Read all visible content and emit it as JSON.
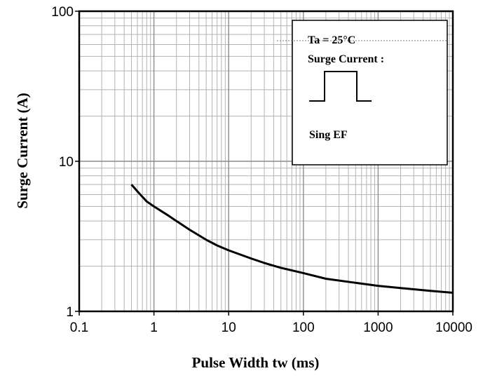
{
  "chart_data": {
    "type": "line",
    "xscale": "log",
    "yscale": "log",
    "xlim": [
      0.1,
      10000
    ],
    "ylim": [
      1,
      100
    ],
    "xlabel": "Pulse Width tw (ms)",
    "ylabel": "Surge Current (A)",
    "x_ticks": [
      {
        "value": 0.1,
        "label": "0.1"
      },
      {
        "value": 1,
        "label": "1"
      },
      {
        "value": 10,
        "label": "10"
      },
      {
        "value": 100,
        "label": "100"
      },
      {
        "value": 1000,
        "label": "1000"
      },
      {
        "value": 10000,
        "label": "10000"
      }
    ],
    "y_ticks": [
      {
        "value": 1,
        "label": "1"
      },
      {
        "value": 10,
        "label": "10"
      },
      {
        "value": 100,
        "label": "100"
      }
    ],
    "grid": true,
    "series": [
      {
        "color": "#000000",
        "x": [
          0.5,
          0.6,
          0.7,
          0.8,
          1,
          1.5,
          2,
          3,
          5,
          7,
          10,
          20,
          30,
          50,
          100,
          200,
          500,
          1000,
          2000,
          5000,
          10000
        ],
        "y": [
          7.0,
          6.3,
          5.8,
          5.4,
          5.0,
          4.4,
          4.0,
          3.5,
          3.0,
          2.75,
          2.55,
          2.25,
          2.1,
          1.95,
          1.8,
          1.65,
          1.55,
          1.48,
          1.43,
          1.37,
          1.33
        ]
      }
    ],
    "annotation": {
      "lines": [
        "Ta = 25°C",
        "Surge Current :",
        "Sing EF"
      ]
    }
  }
}
